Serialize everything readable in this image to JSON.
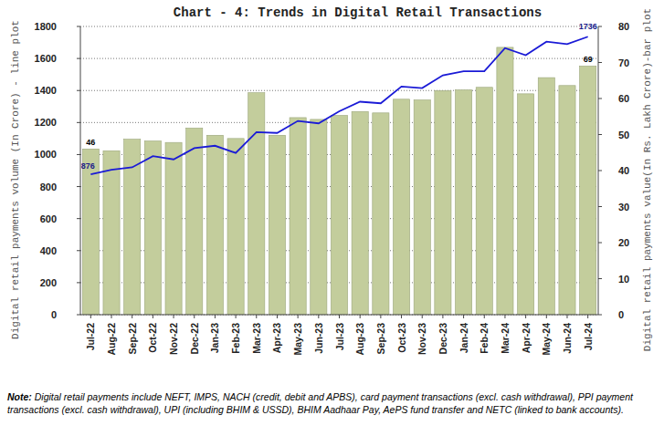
{
  "chart_data": {
    "type": "bar",
    "title": "Chart - 4: Trends in Digital Retail Transactions",
    "y_label": "Digital retail payments volume (In Crore) - line plot",
    "y2_label": "Digital retail payments value(In Rs. Lakh Crore)-bar plot",
    "note": "Note: Digital retail payments include NEFT, IMPS, NACH (credit, debit and APBS), card payment transactions (excl. cash withdrawal), PPI payment transactions (excl. cash withdrawal), UPI (including BHIM & USSD), BHIM Aadhaar Pay, AePS fund transfer and NETC (linked to bank accounts).",
    "categories": [
      "Jul-22",
      "Aug-22",
      "Sep-22",
      "Oct-22",
      "Nov-22",
      "Dec-22",
      "Jan-23",
      "Feb-23",
      "Mar-23",
      "Apr-23",
      "May-23",
      "Jun-23",
      "Jul-23",
      "Aug-23",
      "Sep-23",
      "Oct-23",
      "Nov-23",
      "Dec-23",
      "Jan-24",
      "Feb-24",
      "Mar-24",
      "Apr-24",
      "May-24",
      "Jun-24",
      "Jul-24"
    ],
    "series": [
      {
        "type": "bar",
        "axis": "y2",
        "color": "#c3cd9c",
        "values": [
          46,
          45.5,
          48.7,
          48.2,
          47.8,
          51.8,
          49.8,
          48.9,
          61.6,
          49.8,
          54.7,
          54.2,
          55.3,
          56.4,
          56,
          59.8,
          59.6,
          62.2,
          62.4,
          63.1,
          74.2,
          61.3,
          65.8,
          63.6,
          69
        ],
        "data_labels": true,
        "value_labels": [
          "46",
          null,
          null,
          null,
          null,
          null,
          null,
          null,
          null,
          null,
          null,
          null,
          null,
          null,
          null,
          null,
          null,
          null,
          null,
          null,
          null,
          null,
          null,
          null,
          "69"
        ]
      },
      {
        "type": "line",
        "axis": "y",
        "color": "#1a1ad6",
        "marker": "none",
        "line_style": "solid",
        "values": [
          876,
          905,
          920,
          990,
          970,
          1040,
          1055,
          1010,
          1140,
          1135,
          1210,
          1195,
          1270,
          1330,
          1320,
          1425,
          1415,
          1495,
          1520,
          1520,
          1665,
          1620,
          1705,
          1690,
          1736
        ],
        "data_labels": true,
        "value_labels": [
          "876",
          null,
          null,
          null,
          null,
          null,
          null,
          null,
          null,
          null,
          null,
          null,
          null,
          null,
          null,
          null,
          null,
          null,
          null,
          null,
          null,
          null,
          null,
          null,
          "1736"
        ]
      }
    ],
    "ylim": [
      0,
      1800
    ],
    "yticks": [
      0,
      200,
      400,
      600,
      800,
      1000,
      1200,
      1400,
      1600,
      1800
    ],
    "y2lim": [
      0,
      80
    ],
    "y2ticks": [
      0,
      10,
      20,
      30,
      40,
      50,
      60,
      70,
      80
    ],
    "grid": true
  }
}
